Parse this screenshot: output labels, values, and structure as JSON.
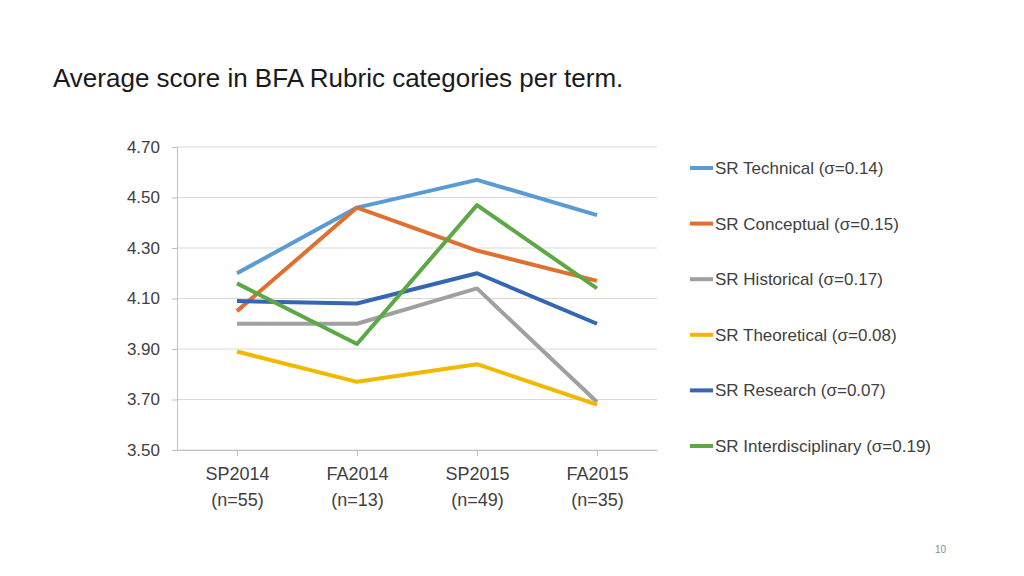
{
  "chart_data": {
    "type": "line",
    "title": "Average score in BFA Rubric categories per term.",
    "categories": [
      "SP2014\n(n=55)",
      "FA2014\n(n=13)",
      "SP2015\n(n=49)",
      "FA2015\n(n=35)"
    ],
    "series": [
      {
        "name": "SR Technical (σ=0.14)",
        "color": "#5b9bd5",
        "values": [
          4.2,
          4.46,
          4.57,
          4.43
        ]
      },
      {
        "name": "SR Conceptual (σ=0.15)",
        "color": "#e0702f",
        "values": [
          4.05,
          4.46,
          4.29,
          4.17
        ]
      },
      {
        "name": "SR Historical (σ=0.17)",
        "color": "#a0a0a0",
        "values": [
          4.0,
          4.0,
          4.14,
          3.69
        ]
      },
      {
        "name": "SR Theoretical (σ=0.08)",
        "color": "#f2b800",
        "values": [
          3.89,
          3.77,
          3.84,
          3.68
        ]
      },
      {
        "name": "SR Research (σ=0.07)",
        "color": "#3466b4",
        "values": [
          4.09,
          4.08,
          4.2,
          4.0
        ]
      },
      {
        "name": "SR Interdisciplinary (σ=0.19)",
        "color": "#5ca845",
        "values": [
          4.16,
          3.92,
          4.47,
          4.14
        ]
      }
    ],
    "ylim": [
      3.5,
      4.7
    ],
    "yticks": [
      {
        "value": 3.5,
        "label": "3.50"
      },
      {
        "value": 3.7,
        "label": "3.70"
      },
      {
        "value": 3.9,
        "label": "3.90"
      },
      {
        "value": 4.1,
        "label": "4.10"
      },
      {
        "value": 4.3,
        "label": "4.30"
      },
      {
        "value": 4.5,
        "label": "4.50"
      },
      {
        "value": 4.7,
        "label": "4.70"
      }
    ],
    "grid": true,
    "legend": "right",
    "annotations": [
      "10"
    ]
  }
}
